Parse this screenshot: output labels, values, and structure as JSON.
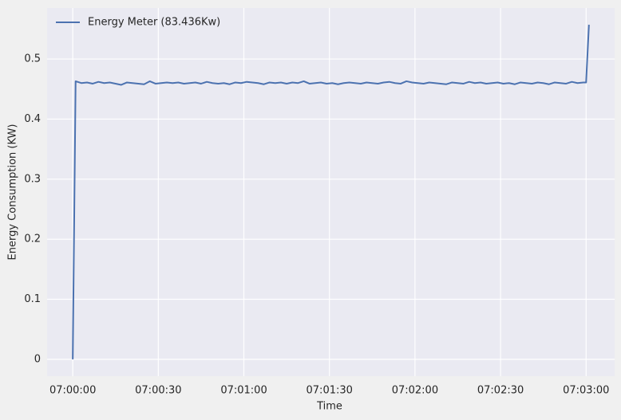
{
  "chart_data": {
    "type": "line",
    "xlabel": "Time",
    "ylabel": "Energy Consumption (KW)",
    "x": [
      "07:00:00",
      "07:00:01",
      "07:00:03",
      "07:00:05",
      "07:00:07",
      "07:00:09",
      "07:00:11",
      "07:00:13",
      "07:00:15",
      "07:00:17",
      "07:00:19",
      "07:00:21",
      "07:00:23",
      "07:00:25",
      "07:00:27",
      "07:00:29",
      "07:00:31",
      "07:00:33",
      "07:00:35",
      "07:00:37",
      "07:00:39",
      "07:00:41",
      "07:00:43",
      "07:00:45",
      "07:00:47",
      "07:00:49",
      "07:00:51",
      "07:00:53",
      "07:00:55",
      "07:00:57",
      "07:00:59",
      "07:01:01",
      "07:01:03",
      "07:01:05",
      "07:01:07",
      "07:01:09",
      "07:01:11",
      "07:01:13",
      "07:01:15",
      "07:01:17",
      "07:01:19",
      "07:01:21",
      "07:01:23",
      "07:01:25",
      "07:01:27",
      "07:01:29",
      "07:01:31",
      "07:01:33",
      "07:01:35",
      "07:01:37",
      "07:01:39",
      "07:01:41",
      "07:01:43",
      "07:01:45",
      "07:01:47",
      "07:01:49",
      "07:01:51",
      "07:01:53",
      "07:01:55",
      "07:01:57",
      "07:01:59",
      "07:02:01",
      "07:02:03",
      "07:02:05",
      "07:02:07",
      "07:02:09",
      "07:02:11",
      "07:02:13",
      "07:02:15",
      "07:02:17",
      "07:02:19",
      "07:02:21",
      "07:02:23",
      "07:02:25",
      "07:02:27",
      "07:02:29",
      "07:02:31",
      "07:02:33",
      "07:02:35",
      "07:02:37",
      "07:02:39",
      "07:02:41",
      "07:02:43",
      "07:02:45",
      "07:02:47",
      "07:02:49",
      "07:02:51",
      "07:02:53",
      "07:02:55",
      "07:02:57",
      "07:02:59",
      "07:03:00",
      "07:03:01"
    ],
    "series": [
      {
        "name": "Energy Meter (83.436Kw)",
        "color": "#4c72b0",
        "values": [
          0.0,
          0.463,
          0.46,
          0.461,
          0.459,
          0.462,
          0.46,
          0.461,
          0.459,
          0.457,
          0.461,
          0.46,
          0.459,
          0.458,
          0.463,
          0.459,
          0.46,
          0.461,
          0.46,
          0.461,
          0.459,
          0.46,
          0.461,
          0.459,
          0.462,
          0.46,
          0.459,
          0.46,
          0.458,
          0.461,
          0.46,
          0.462,
          0.461,
          0.46,
          0.458,
          0.461,
          0.46,
          0.461,
          0.459,
          0.461,
          0.46,
          0.463,
          0.459,
          0.46,
          0.461,
          0.459,
          0.46,
          0.458,
          0.46,
          0.461,
          0.46,
          0.459,
          0.461,
          0.46,
          0.459,
          0.461,
          0.462,
          0.46,
          0.459,
          0.463,
          0.461,
          0.46,
          0.459,
          0.461,
          0.46,
          0.459,
          0.458,
          0.461,
          0.46,
          0.459,
          0.462,
          0.46,
          0.461,
          0.459,
          0.46,
          0.461,
          0.459,
          0.46,
          0.458,
          0.461,
          0.46,
          0.459,
          0.461,
          0.46,
          0.458,
          0.461,
          0.46,
          0.459,
          0.462,
          0.46,
          0.461,
          0.461,
          0.557
        ]
      }
    ],
    "xlim": [
      "06:59:51",
      "07:03:10"
    ],
    "xticks": [
      "07:00:00",
      "07:00:30",
      "07:01:00",
      "07:01:30",
      "07:02:00",
      "07:02:30",
      "07:03:00"
    ],
    "ylim": [
      -0.028,
      0.585
    ],
    "yticks": [
      0.0,
      0.1,
      0.2,
      0.3,
      0.4,
      0.5
    ],
    "grid": true,
    "legend": "upper left"
  }
}
